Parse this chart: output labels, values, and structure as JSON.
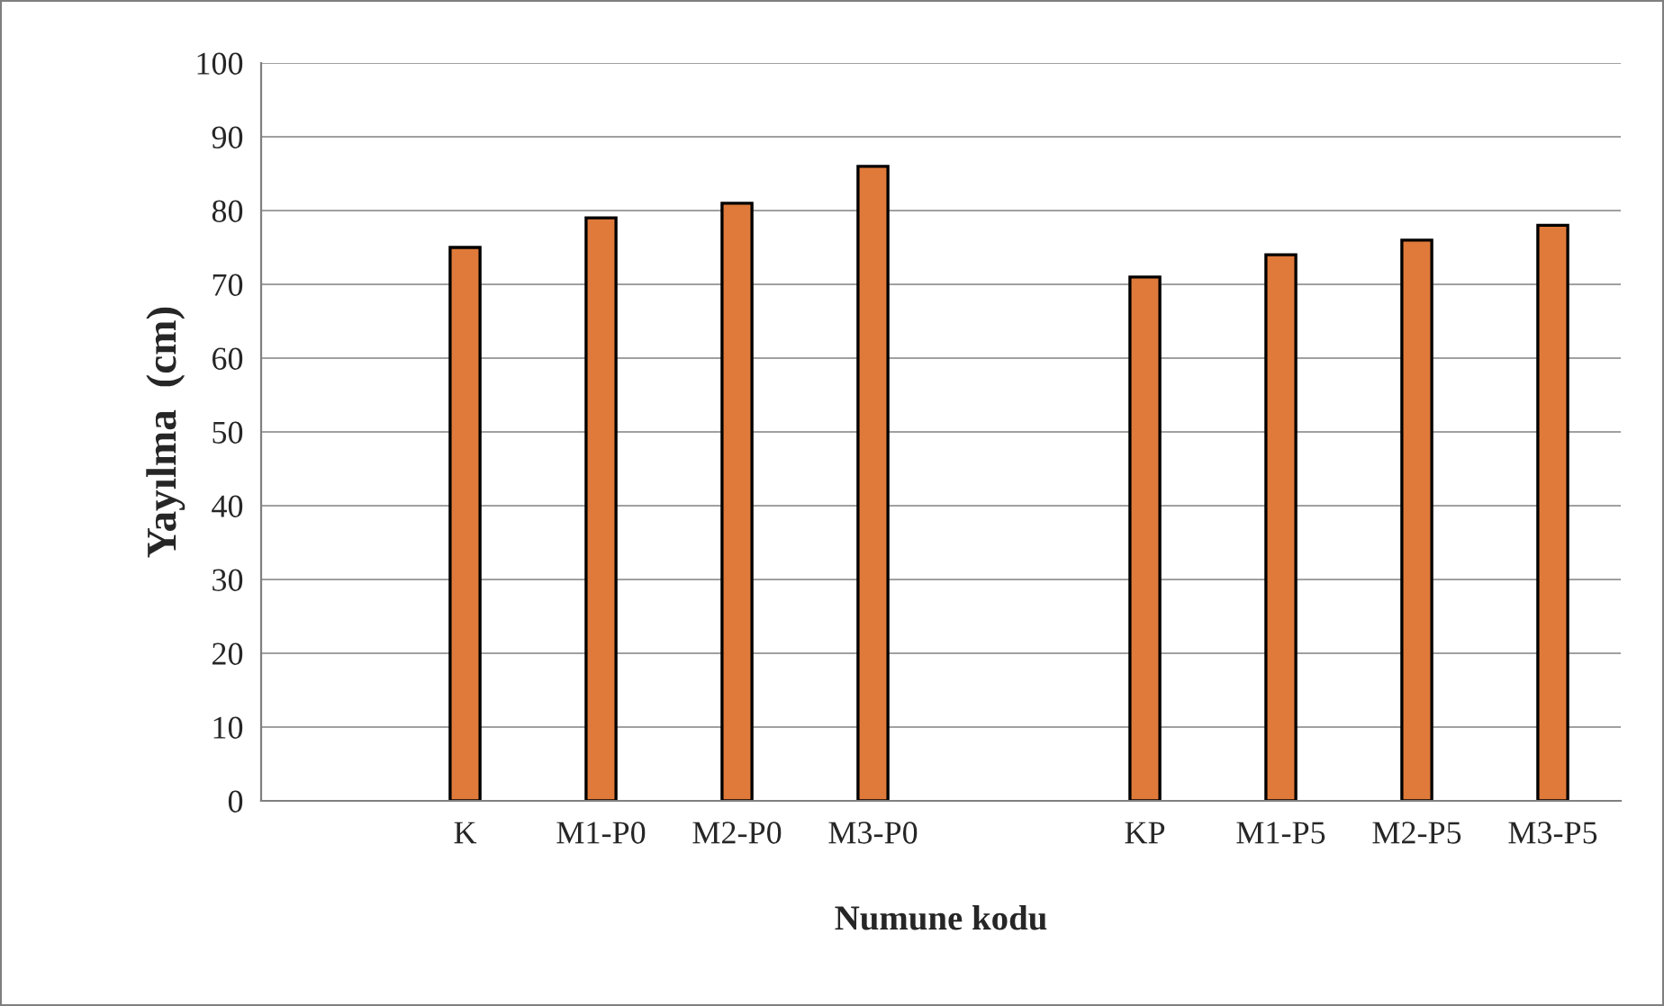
{
  "chart_data": {
    "type": "bar",
    "xlabel": "Numune kodu",
    "ylabel": "Yayılma  (cm)",
    "categories": [
      null,
      "K",
      "M1-P0",
      "M2-P0",
      "M3-P0",
      null,
      "KP",
      "M1-P5",
      "M2-P5",
      "M3-P5"
    ],
    "values": [
      null,
      75,
      79,
      81,
      86,
      null,
      71,
      74,
      76,
      78
    ],
    "color": "#e07a3a",
    "ylim": [
      0,
      100
    ],
    "yticks": [
      0,
      10,
      20,
      30,
      40,
      50,
      60,
      70,
      80,
      90,
      100
    ],
    "grid": "y",
    "legend": false
  }
}
